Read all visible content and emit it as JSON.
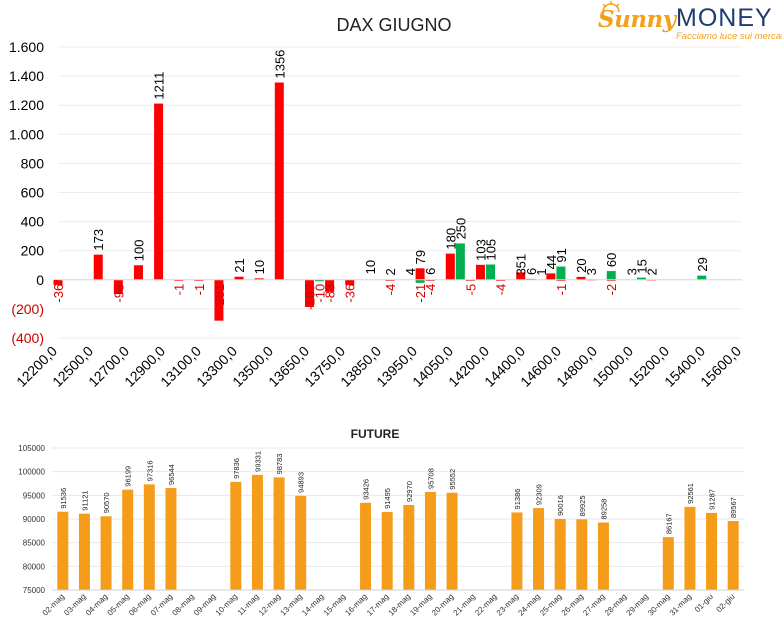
{
  "logo": {
    "brand_first": "Sunny",
    "brand_second": "MONEY",
    "tagline": "Facciamo luce sui mercati",
    "colors": {
      "orange": "#f4a11a",
      "navy": "#1d3d6e"
    }
  },
  "chart_data": [
    {
      "type": "bar",
      "title": "DAX GIUGNO",
      "xlabel": "",
      "ylabel": "",
      "ylim": [
        -400,
        1600
      ],
      "y_ticks": [
        {
          "value": 1600,
          "label": "1.600"
        },
        {
          "value": 1400,
          "label": "1.400"
        },
        {
          "value": 1200,
          "label": "1.200"
        },
        {
          "value": 1000,
          "label": "1.000"
        },
        {
          "value": 800,
          "label": "800"
        },
        {
          "value": 600,
          "label": "600"
        },
        {
          "value": 400,
          "label": "400"
        },
        {
          "value": 200,
          "label": "200"
        },
        {
          "value": 0,
          "label": "0"
        },
        {
          "value": -200,
          "label": "(200)"
        },
        {
          "value": -400,
          "label": "(400)"
        }
      ],
      "x_tick_labels": [
        "12200,0",
        "12500,0",
        "12700,0",
        "12900,0",
        "13100,0",
        "13300,0",
        "13500,0",
        "13650,0",
        "13750,0",
        "13850,0",
        "13950,0",
        "14050,0",
        "14200,0",
        "14400,0",
        "14600,0",
        "14800,0",
        "15000,0",
        "15200,0",
        "15400,0",
        "15600,0"
      ],
      "grid": true,
      "legend": "none",
      "colors": {
        "red": "#ff0000",
        "green": "#00b050"
      },
      "series": [
        {
          "color": "red",
          "x": [
            12200,
            12400,
            12500,
            12600,
            12700,
            12800,
            12900,
            13000,
            13100,
            13200,
            13300,
            13450,
            13550,
            13650,
            13850,
            14000,
            14050,
            14150,
            14250,
            14300,
            14400,
            14500,
            14550,
            14650,
            14700,
            14800,
            14850,
            14950,
            15150
          ],
          "values": [
            -36,
            173,
            -98,
            100,
            1211,
            -1,
            -1,
            -281,
            21,
            10,
            1356,
            -187,
            -83,
            -36,
            -4,
            79,
            -4,
            180,
            -5,
            103,
            -4,
            51,
            6,
            44,
            -1,
            20,
            3,
            -2,
            2
          ]
        },
        {
          "color": "green",
          "x": [
            13500,
            14000,
            14200,
            14350,
            14700,
            14950,
            15100,
            15400
          ],
          "values": [
            -10,
            -21,
            250,
            105,
            91,
            60,
            15,
            29
          ]
        }
      ],
      "labels_without_bars": [
        {
          "x": 13750,
          "value": 10
        },
        {
          "x": 13850,
          "value": 2
        },
        {
          "x": 13950,
          "value": 4
        },
        {
          "x": 14050,
          "value": 6
        },
        {
          "x": 14500,
          "value": 3
        },
        {
          "x": 14600,
          "value": 1
        },
        {
          "x": 15050,
          "value": 3
        }
      ]
    },
    {
      "type": "bar",
      "title": "FUTURE",
      "xlabel": "",
      "ylabel": "",
      "ylim": [
        75000,
        105000
      ],
      "y_ticks": [
        75000,
        80000,
        85000,
        90000,
        95000,
        100000,
        105000
      ],
      "grid": true,
      "legend": "none",
      "color": "#f59c1a",
      "categories": [
        "02-mag",
        "03-mag",
        "04-mag",
        "05-mag",
        "06-mag",
        "07-mag",
        "08-mag",
        "09-mag",
        "10-mag",
        "11-mag",
        "12-mag",
        "13-mag",
        "14-mag",
        "15-mag",
        "16-mag",
        "17-mag",
        "18-mag",
        "19-mag",
        "20-mag",
        "21-mag",
        "22-mag",
        "23-mag",
        "24-mag",
        "25-mag",
        "26-mag",
        "27-mag",
        "28-mag",
        "29-mag",
        "30-mag",
        "31-mag",
        "01-giu",
        "02-giu"
      ],
      "values": [
        91536,
        91121,
        90570,
        96199,
        97316,
        96544,
        null,
        null,
        97836,
        99331,
        98783,
        94893,
        null,
        null,
        93426,
        91495,
        92970,
        95708,
        95552,
        null,
        null,
        91386,
        92309,
        90016,
        89925,
        89258,
        null,
        null,
        86167,
        92561,
        91287,
        89567
      ]
    }
  ]
}
